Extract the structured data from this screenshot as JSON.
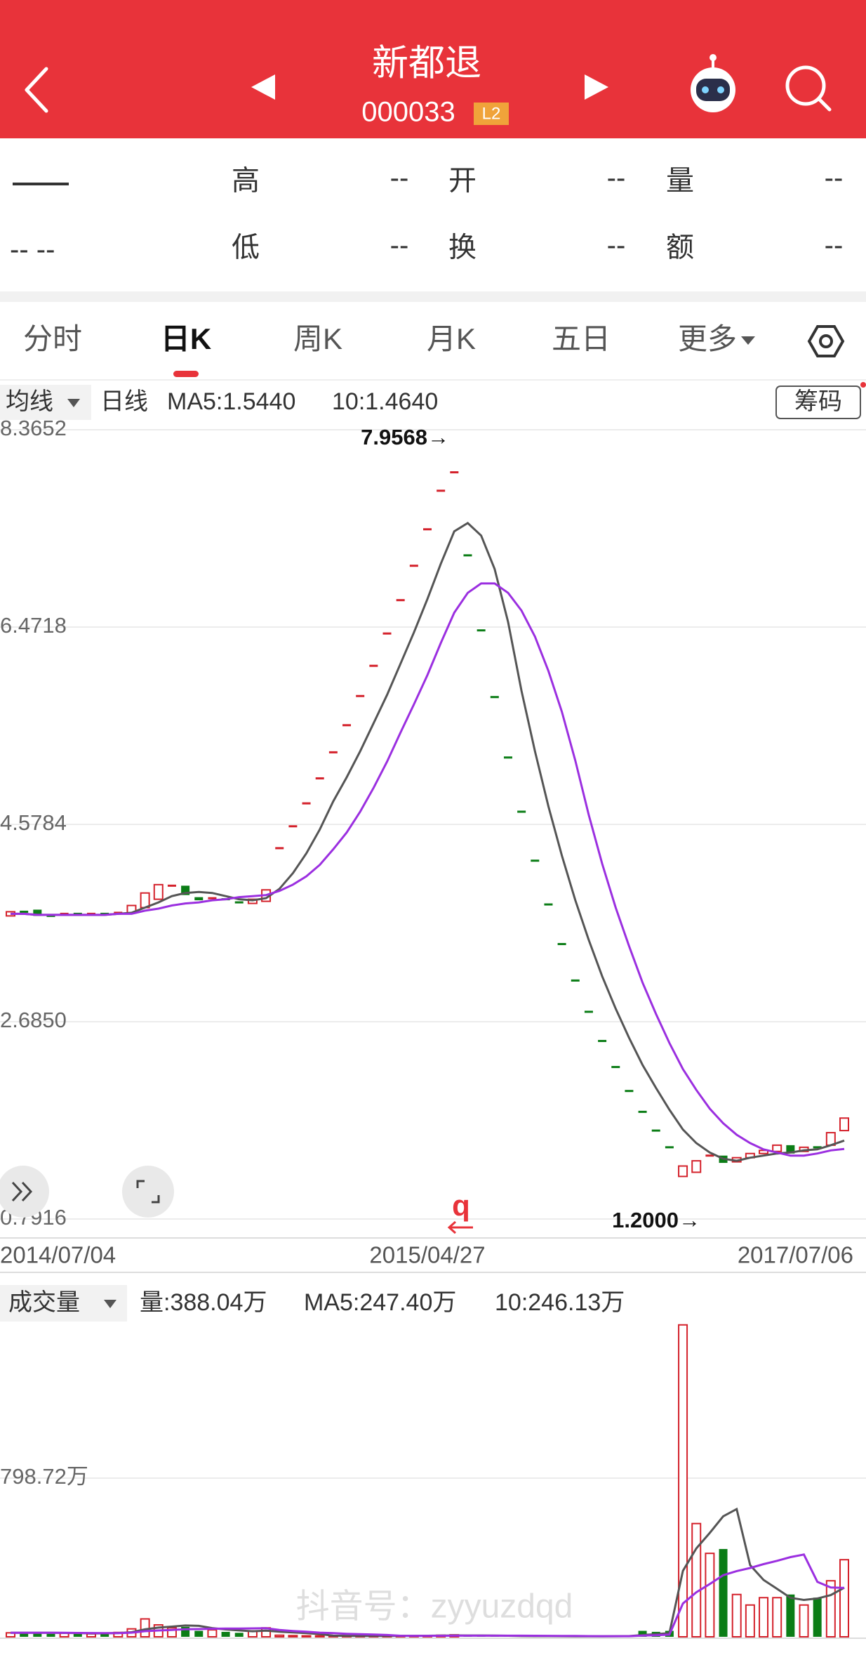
{
  "header": {
    "title": "新都退",
    "code": "000033",
    "badge": "L2"
  },
  "quote": {
    "price": "——",
    "change": "-- --",
    "rows": [
      [
        "高",
        "--",
        "开",
        "--",
        "量",
        "--"
      ],
      [
        "低",
        "--",
        "换",
        "--",
        "额",
        "--"
      ]
    ]
  },
  "tabs": [
    "分时",
    "日K",
    "周K",
    "月K",
    "五日",
    "更多"
  ],
  "active_tab": 1,
  "chart_data": [
    {
      "type": "candlestick",
      "selector": "均线",
      "period": "日线",
      "button": "筹码",
      "max_label": "7.9568→",
      "min_label": "1.2000→",
      "marker": "q",
      "up_color": "#d4212b",
      "down_color": "#0b7d16",
      "categories": [
        "2014/07/04",
        null,
        null,
        null,
        null,
        null,
        null,
        null,
        null,
        null,
        null,
        null,
        null,
        null,
        null,
        null,
        null,
        null,
        null,
        null,
        null,
        null,
        null,
        null,
        null,
        null,
        null,
        null,
        null,
        null,
        null,
        "2015/04/27",
        null,
        null,
        null,
        null,
        null,
        null,
        null,
        null,
        null,
        null,
        null,
        null,
        null,
        null,
        null,
        null,
        null,
        null,
        null,
        null,
        null,
        null,
        null,
        null,
        null,
        null,
        null,
        null,
        null,
        null,
        "2017/07/06"
      ],
      "open": [
        3.7,
        3.74,
        3.76,
        3.7,
        3.7,
        3.72,
        3.71,
        3.72,
        3.72,
        3.73,
        3.78,
        3.86,
        3.98,
        3.99,
        3.88,
        3.85,
        3.86,
        3.83,
        3.82,
        3.84,
        4.35,
        4.56,
        4.78,
        5.02,
        5.27,
        5.53,
        5.81,
        6.1,
        6.41,
        6.73,
        7.06,
        7.41,
        7.78,
        7.9568,
        7.16,
        6.44,
        5.8,
        5.22,
        4.7,
        4.23,
        3.81,
        3.43,
        3.08,
        2.78,
        2.5,
        2.25,
        2.02,
        1.82,
        1.64,
        1.48,
        1.2,
        1.24,
        1.38,
        1.4,
        1.34,
        1.38,
        1.42,
        1.44,
        1.5,
        1.44,
        1.48,
        1.5,
        1.64
      ],
      "close": [
        3.74,
        3.72,
        3.7,
        3.69,
        3.72,
        3.71,
        3.72,
        3.71,
        3.73,
        3.8,
        3.92,
        4.0,
        3.99,
        3.9,
        3.85,
        3.87,
        3.84,
        3.82,
        3.86,
        3.95,
        4.35,
        4.56,
        4.78,
        5.02,
        5.27,
        5.53,
        5.81,
        6.1,
        6.41,
        6.73,
        7.06,
        7.41,
        7.78,
        7.9568,
        7.16,
        6.44,
        5.8,
        5.22,
        4.7,
        4.23,
        3.81,
        3.43,
        3.08,
        2.78,
        2.5,
        2.25,
        2.02,
        1.82,
        1.64,
        1.48,
        1.3,
        1.35,
        1.4,
        1.33,
        1.38,
        1.42,
        1.45,
        1.5,
        1.42,
        1.48,
        1.47,
        1.62,
        1.76
      ],
      "series": [
        {
          "name": "MA5:1.5440",
          "color": "#555555",
          "values": [
            3.72,
            3.72,
            3.71,
            3.71,
            3.71,
            3.71,
            3.71,
            3.71,
            3.72,
            3.73,
            3.78,
            3.83,
            3.89,
            3.92,
            3.93,
            3.92,
            3.89,
            3.86,
            3.85,
            3.87,
            3.96,
            4.11,
            4.3,
            4.53,
            4.8,
            5.03,
            5.28,
            5.55,
            5.82,
            6.12,
            6.42,
            6.74,
            7.08,
            7.39,
            7.47,
            7.35,
            7.03,
            6.52,
            5.86,
            5.28,
            4.75,
            4.28,
            3.85,
            3.47,
            3.12,
            2.81,
            2.53,
            2.27,
            2.05,
            1.84,
            1.65,
            1.52,
            1.43,
            1.37,
            1.35,
            1.38,
            1.4,
            1.42,
            1.43,
            1.45,
            1.46,
            1.5,
            1.544
          ]
        },
        {
          "name": "10:1.4640",
          "color": "#9b2fe0",
          "values": [
            3.72,
            3.72,
            3.71,
            3.71,
            3.71,
            3.71,
            3.71,
            3.71,
            3.72,
            3.72,
            3.75,
            3.77,
            3.8,
            3.82,
            3.83,
            3.85,
            3.86,
            3.88,
            3.89,
            3.9,
            3.94,
            4.0,
            4.08,
            4.19,
            4.34,
            4.5,
            4.7,
            4.93,
            5.18,
            5.46,
            5.73,
            6.01,
            6.32,
            6.61,
            6.8,
            6.89,
            6.89,
            6.8,
            6.63,
            6.38,
            6.05,
            5.66,
            5.19,
            4.67,
            4.2,
            3.78,
            3.41,
            3.06,
            2.76,
            2.48,
            2.23,
            2.03,
            1.85,
            1.71,
            1.6,
            1.52,
            1.46,
            1.43,
            1.4,
            1.4,
            1.42,
            1.45,
            1.464
          ]
        }
      ],
      "ylim": [
        0.7916,
        8.3652
      ],
      "yticks": [
        8.3652,
        6.4718,
        4.5784,
        {
          "value": 2.685,
          "label": "2.6850"
        },
        0.7916
      ],
      "grid": true
    },
    {
      "type": "bar",
      "selector": "成交量",
      "volume_label": "量:388.04万",
      "watermark": "抖音号：zyyuzdqd",
      "values": [
        20,
        25,
        18,
        15,
        20,
        18,
        15,
        20,
        22,
        40,
        90,
        60,
        45,
        50,
        30,
        35,
        25,
        20,
        30,
        45,
        8,
        6,
        5,
        5,
        4,
        4,
        4,
        5,
        5,
        6,
        5,
        6,
        8,
        10,
        5,
        4,
        4,
        4,
        3,
        3,
        3,
        3,
        3,
        3,
        3,
        4,
        4,
        30,
        25,
        30,
        1570,
        570,
        420,
        442,
        213,
        160,
        197,
        197,
        213,
        160,
        197,
        282,
        388.04
      ],
      "series": [
        {
          "name": "MA5:247.40万",
          "color": "#555555",
          "values": [
            20,
            20,
            20,
            20,
            19.6,
            19.2,
            17.2,
            17.6,
            19,
            23,
            37.4,
            46.4,
            51.4,
            57,
            55,
            44,
            37,
            32,
            28,
            31,
            25.6,
            21.8,
            18.8,
            13.8,
            5.6,
            4.8,
            4.4,
            4.4,
            4.4,
            4.8,
            5,
            5.4,
            6,
            7,
            6.8,
            6.6,
            6.2,
            5.4,
            4,
            3.6,
            3.4,
            3.2,
            3,
            3,
            3,
            3.2,
            3.4,
            8.8,
            13.2,
            18.6,
            331.8,
            445,
            523,
            606.4,
            643,
            361,
            286.4,
            241.8,
            196,
            185.4,
            192.8,
            209.8,
            247.4
          ]
        },
        {
          "name": "10:246.13万",
          "color": "#9b2fe0",
          "values": [
            20,
            20,
            20,
            20,
            20,
            19.5,
            19,
            18.5,
            18.5,
            21,
            28.3,
            31.8,
            34.5,
            38,
            39,
            40.7,
            41.7,
            41.7,
            42.5,
            43,
            34.8,
            29.4,
            25.4,
            20.9,
            18.3,
            15.2,
            13.1,
            11.6,
            9.1,
            5.2,
            4.9,
            4.9,
            5.2,
            5.7,
            5.8,
            5.8,
            5.8,
            5.7,
            5.5,
            5.2,
            5,
            4.7,
            4.2,
            3.5,
            3.3,
            3.3,
            3.3,
            5.9,
            8.1,
            10.8,
            167.5,
            224.2,
            265.9,
            309.8,
            330.8,
            346.4,
            365.7,
            382.4,
            401.2,
            414.2,
            276.9,
            248.1,
            246.13
          ]
        }
      ],
      "ylim": [
        0,
        1597.44
      ],
      "yticks": [
        {
          "value": 798.72,
          "label": "798.72万"
        }
      ],
      "grid": true
    }
  ]
}
